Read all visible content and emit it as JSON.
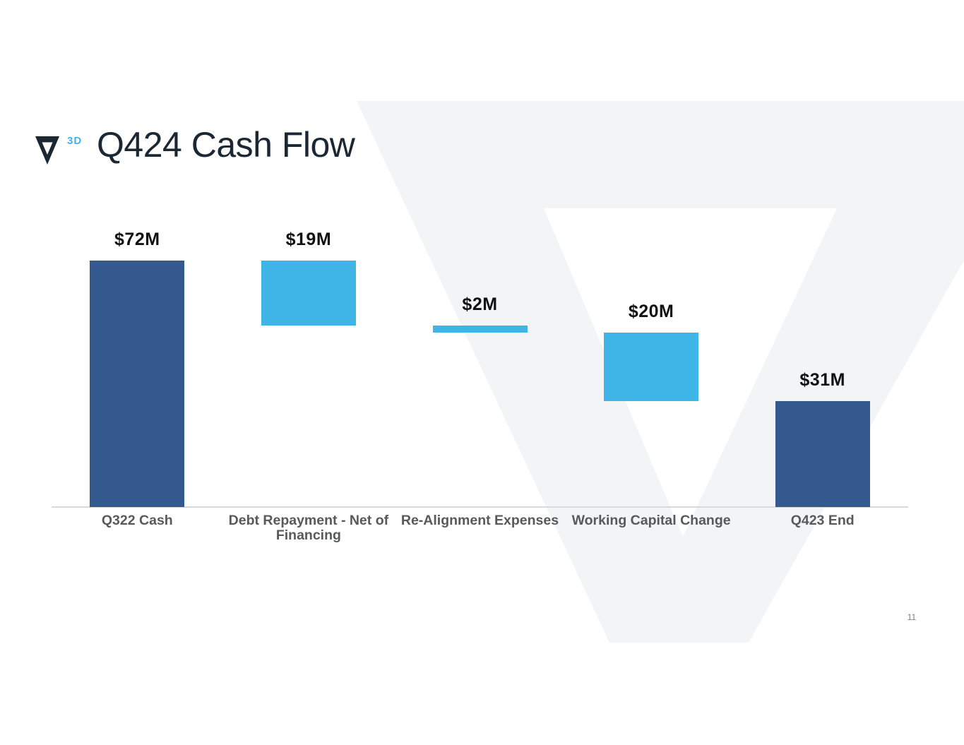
{
  "slide": {
    "title": "Q424 Cash Flow",
    "logo": {
      "mark": "nabla-triangle-logo",
      "superscript": "3D"
    },
    "page_number": "11"
  },
  "colors": {
    "navy_text": "#1b2733",
    "bar_dark_blue": "#33598E",
    "bar_light_blue": "#3FB4E6",
    "accent_blue": "#3FB4E6",
    "value_label": "#111111",
    "category_label": "#58595b",
    "axis_line": "#d9d9d9",
    "watermark_gray": "#f3f4f6",
    "page_number_gray": "#7f7f7f"
  },
  "chart_data": {
    "type": "bar",
    "subtype": "waterfall",
    "title": "Q424 Cash Flow",
    "unit": "$M",
    "xlabel": "",
    "ylabel": "",
    "ylim": [
      0,
      72
    ],
    "grid": false,
    "legend": "none",
    "axis_style": "baseline-only",
    "categories": [
      "Q322 Cash",
      "Debt Repayment - Net of Financing",
      "Re-Alignment Expenses",
      "Working Capital Change",
      "Q423 End"
    ],
    "series": [
      {
        "category": "Q322 Cash",
        "label": "$72M",
        "value": 72,
        "start": 0,
        "end": 72,
        "role": "total"
      },
      {
        "category": "Debt Repayment - Net of Financing",
        "label": "$19M",
        "value": -19,
        "start": 72,
        "end": 53,
        "role": "decrease"
      },
      {
        "category": "Re-Alignment Expenses",
        "label": "$2M",
        "value": -2,
        "start": 53,
        "end": 51,
        "role": "decrease"
      },
      {
        "category": "Working Capital Change",
        "label": "$20M",
        "value": -20,
        "start": 51,
        "end": 31,
        "role": "decrease"
      },
      {
        "category": "Q423 End",
        "label": "$31M",
        "value": 31,
        "start": 0,
        "end": 31,
        "role": "total"
      }
    ]
  }
}
